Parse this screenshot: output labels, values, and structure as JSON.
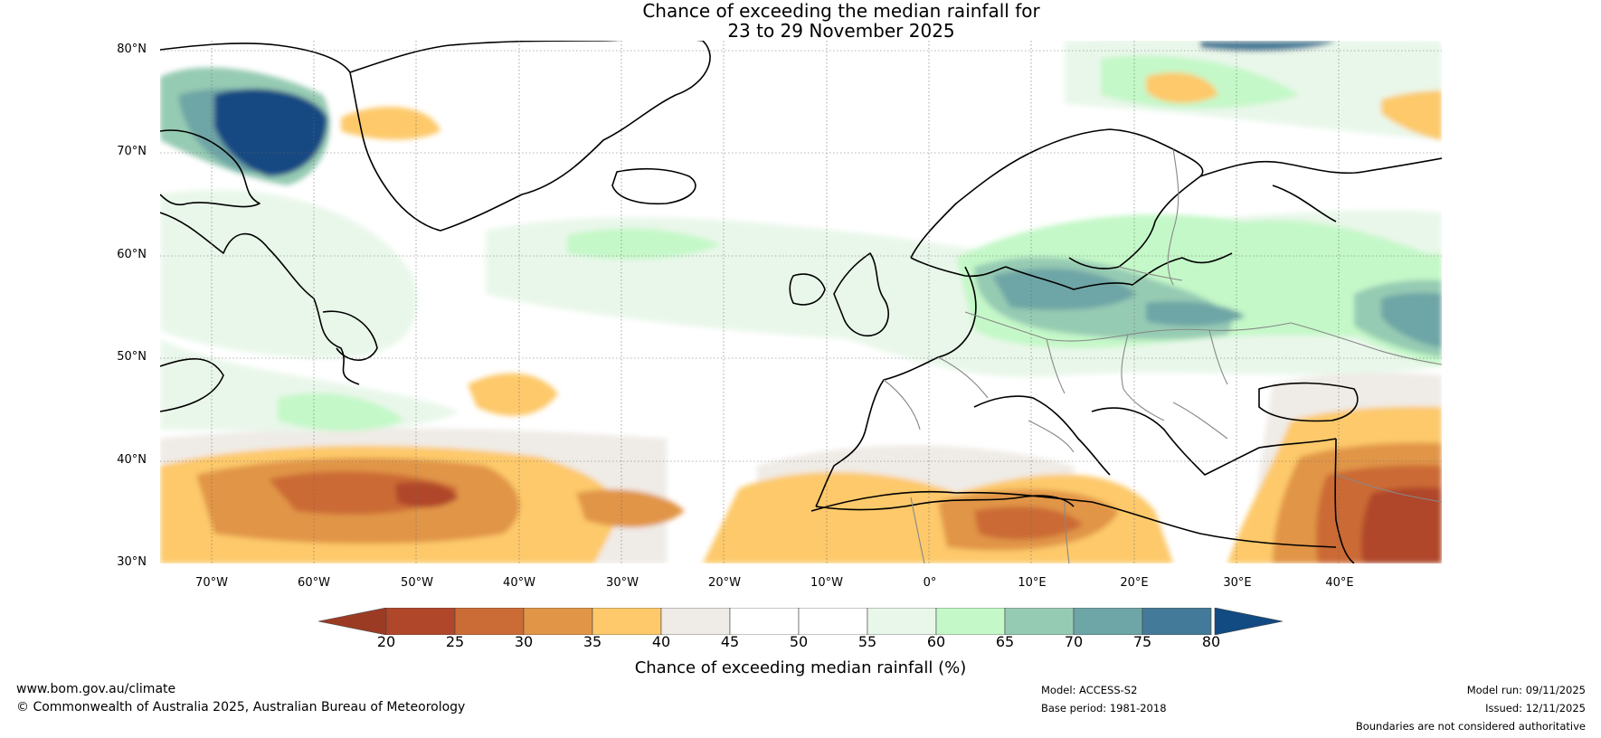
{
  "title": {
    "line1": "Chance of exceeding the median rainfall for",
    "line2": "23 to 29 November 2025"
  },
  "map": {
    "lat_labels": [
      "80°N",
      "70°N",
      "60°N",
      "50°N",
      "40°N",
      "30°N"
    ],
    "lon_labels": [
      "70°W",
      "60°W",
      "50°W",
      "40°W",
      "30°W",
      "20°W",
      "10°W",
      "0°",
      "10°E",
      "20°E",
      "30°E",
      "40°E"
    ],
    "extent": {
      "lon_min": -75,
      "lon_max": 50,
      "lat_min": 30,
      "lat_max": 81
    }
  },
  "colorbar": {
    "ticks": [
      "20",
      "25",
      "30",
      "35",
      "40",
      "45",
      "50",
      "55",
      "60",
      "65",
      "70",
      "75",
      "80"
    ],
    "colors": [
      "#b0472a",
      "#cb6b35",
      "#e19547",
      "#fdc96a",
      "#efebe6",
      "#ffffff",
      "#ffffff",
      "#e9f7ea",
      "#c4f8c8",
      "#96cbb3",
      "#6ea5a6",
      "#447a99"
    ],
    "under_color": "#9c3b24",
    "over_color": "#124a82",
    "label": "Chance of exceeding median rainfall (%)"
  },
  "footer": {
    "website": "www.bom.gov.au/climate",
    "copyright": "© Commonwealth of Australia 2025, Australian Bureau of Meteorology",
    "model": "Model: ACCESS-S2",
    "base_period": "Base period: 1981-2018",
    "model_run": "Model run: 09/11/2025",
    "issued": "Issued: 12/11/2025",
    "disclaimer": "Boundaries are not considered authoritative"
  }
}
